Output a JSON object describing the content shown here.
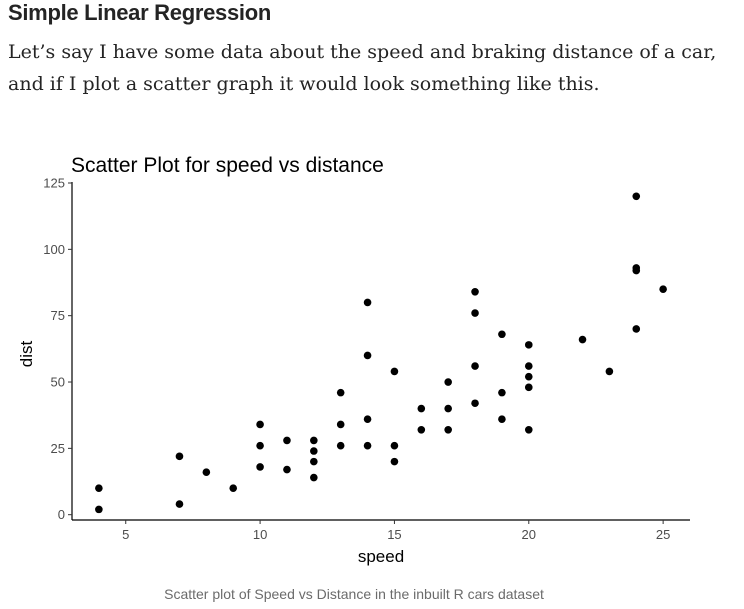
{
  "article": {
    "heading": "Simple Linear Regression",
    "paragraph": "Let’s say I have some data about the speed and braking distance of a car, and if I plot a scatter graph it would look something like this.",
    "caption": "Scatter plot of Speed vs Distance in the inbuilt R cars dataset"
  },
  "chart_data": {
    "type": "scatter",
    "title": "Scatter Plot for speed vs distance",
    "xlabel": "speed",
    "ylabel": "dist",
    "xlim": [
      3,
      26
    ],
    "ylim": [
      -2,
      125
    ],
    "xticks": [
      5,
      10,
      15,
      20,
      25
    ],
    "yticks": [
      0,
      25,
      50,
      75,
      100,
      125
    ],
    "grid": false,
    "point_color": "#000000",
    "points": [
      {
        "x": 4,
        "y": 2
      },
      {
        "x": 4,
        "y": 10
      },
      {
        "x": 7,
        "y": 4
      },
      {
        "x": 7,
        "y": 22
      },
      {
        "x": 8,
        "y": 16
      },
      {
        "x": 9,
        "y": 10
      },
      {
        "x": 10,
        "y": 18
      },
      {
        "x": 10,
        "y": 26
      },
      {
        "x": 10,
        "y": 34
      },
      {
        "x": 11,
        "y": 17
      },
      {
        "x": 11,
        "y": 28
      },
      {
        "x": 12,
        "y": 14
      },
      {
        "x": 12,
        "y": 20
      },
      {
        "x": 12,
        "y": 24
      },
      {
        "x": 12,
        "y": 28
      },
      {
        "x": 13,
        "y": 26
      },
      {
        "x": 13,
        "y": 34
      },
      {
        "x": 13,
        "y": 46
      },
      {
        "x": 14,
        "y": 26
      },
      {
        "x": 14,
        "y": 36
      },
      {
        "x": 14,
        "y": 60
      },
      {
        "x": 14,
        "y": 80
      },
      {
        "x": 15,
        "y": 20
      },
      {
        "x": 15,
        "y": 26
      },
      {
        "x": 15,
        "y": 54
      },
      {
        "x": 16,
        "y": 32
      },
      {
        "x": 16,
        "y": 40
      },
      {
        "x": 17,
        "y": 32
      },
      {
        "x": 17,
        "y": 40
      },
      {
        "x": 17,
        "y": 50
      },
      {
        "x": 18,
        "y": 42
      },
      {
        "x": 18,
        "y": 56
      },
      {
        "x": 18,
        "y": 76
      },
      {
        "x": 18,
        "y": 84
      },
      {
        "x": 19,
        "y": 36
      },
      {
        "x": 19,
        "y": 46
      },
      {
        "x": 19,
        "y": 68
      },
      {
        "x": 20,
        "y": 32
      },
      {
        "x": 20,
        "y": 48
      },
      {
        "x": 20,
        "y": 52
      },
      {
        "x": 20,
        "y": 56
      },
      {
        "x": 20,
        "y": 64
      },
      {
        "x": 22,
        "y": 66
      },
      {
        "x": 23,
        "y": 54
      },
      {
        "x": 24,
        "y": 70
      },
      {
        "x": 24,
        "y": 92
      },
      {
        "x": 24,
        "y": 93
      },
      {
        "x": 24,
        "y": 120
      },
      {
        "x": 25,
        "y": 85
      }
    ]
  }
}
